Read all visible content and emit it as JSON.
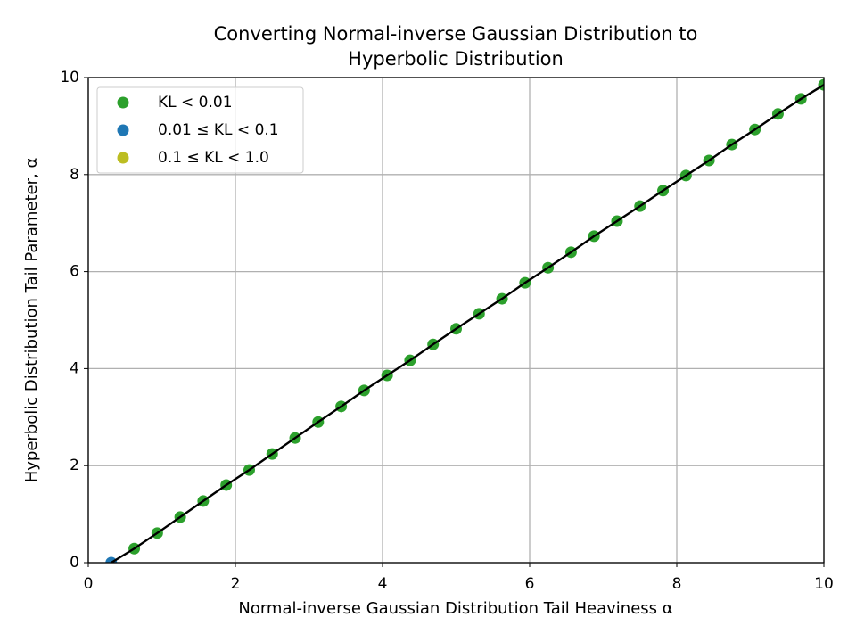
{
  "chart_data": {
    "type": "scatter",
    "title": [
      "Converting Normal-inverse Gaussian Distribution to",
      "Hyperbolic Distribution"
    ],
    "x_label": "Normal-inverse Gaussian Distribution Tail Heaviness α",
    "y_label": "Hyperbolic Distribution Tail Parameter, α",
    "xlim": [
      0,
      10
    ],
    "ylim": [
      0,
      10
    ],
    "xticks": [
      0,
      2,
      4,
      6,
      8,
      10
    ],
    "yticks": [
      0,
      2,
      4,
      6,
      8,
      10
    ],
    "grid": true,
    "legend": "upper left",
    "series": [
      {
        "name": "KL < 0.01",
        "color": "#2ca02c",
        "x": [
          0.625,
          0.9375,
          1.25,
          1.5625,
          1.875,
          2.1875,
          2.5,
          2.8125,
          3.125,
          3.4375,
          3.75,
          4.0625,
          4.375,
          4.6875,
          5,
          5.3125,
          5.625,
          5.9375,
          6.25,
          6.5625,
          6.875,
          7.1875,
          7.5,
          7.8125,
          8.125,
          8.4375,
          8.75,
          9.0625,
          9.375,
          9.6875,
          10
        ],
        "values": [
          0.29,
          0.61,
          0.94,
          1.27,
          1.6,
          1.91,
          2.24,
          2.57,
          2.9,
          3.22,
          3.55,
          3.86,
          4.17,
          4.5,
          4.82,
          5.13,
          5.44,
          5.77,
          6.08,
          6.4,
          6.73,
          7.04,
          7.35,
          7.67,
          7.98,
          8.29,
          8.62,
          8.93,
          9.25,
          9.56,
          9.85
        ]
      },
      {
        "name": "0.01 ≤ KL < 0.1",
        "color": "#1f77b4",
        "x": [
          0.3125
        ],
        "values": [
          0
        ]
      },
      {
        "name": "0.1 ≤ KL < 1.0",
        "color": "#bcbd22",
        "x": [],
        "values": []
      }
    ],
    "line": {
      "color": "#000000",
      "x": [
        0.3125,
        0.625,
        0.9375,
        1.25,
        1.5625,
        1.875,
        2.1875,
        2.5,
        2.8125,
        3.125,
        3.4375,
        3.75,
        4.0625,
        4.375,
        4.6875,
        5,
        5.3125,
        5.625,
        5.9375,
        6.25,
        6.5625,
        6.875,
        7.1875,
        7.5,
        7.8125,
        8.125,
        8.4375,
        8.75,
        9.0625,
        9.375,
        9.6875,
        10
      ],
      "values": [
        0,
        0.29,
        0.61,
        0.94,
        1.27,
        1.6,
        1.91,
        2.24,
        2.57,
        2.9,
        3.22,
        3.55,
        3.86,
        4.17,
        4.5,
        4.82,
        5.13,
        5.44,
        5.77,
        6.08,
        6.4,
        6.73,
        7.04,
        7.35,
        7.67,
        7.98,
        8.29,
        8.62,
        8.93,
        9.25,
        9.56,
        9.85
      ]
    }
  }
}
